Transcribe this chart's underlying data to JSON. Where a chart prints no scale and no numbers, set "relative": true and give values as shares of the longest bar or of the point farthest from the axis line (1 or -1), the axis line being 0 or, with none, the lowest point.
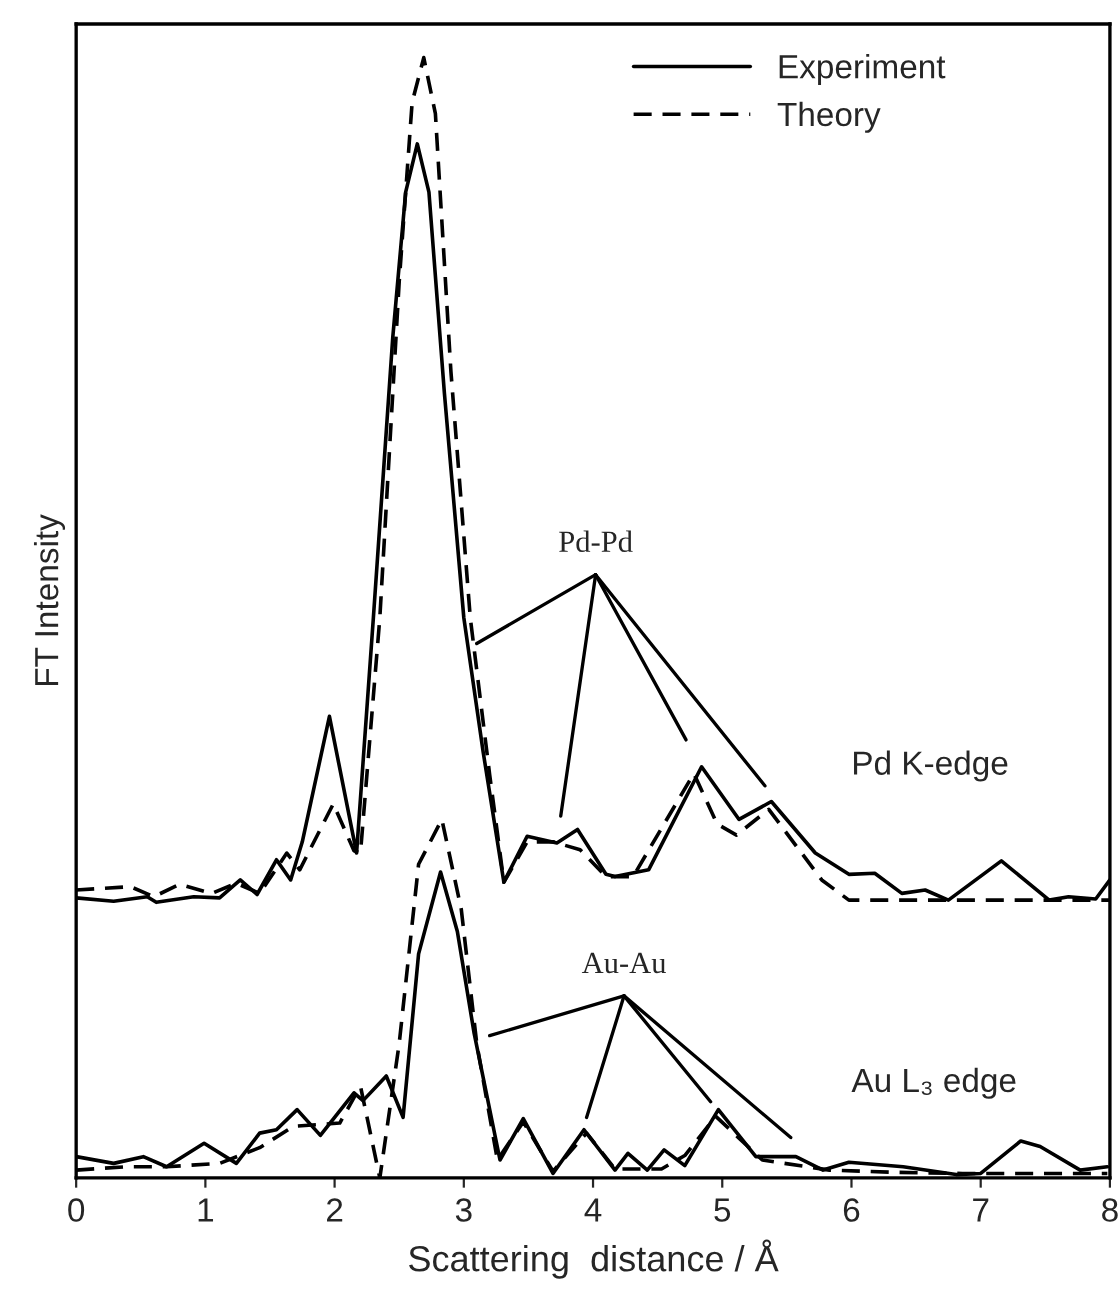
{
  "chart_data": {
    "type": "line",
    "relative": true,
    "xlabel": "Scattering  distance / Å",
    "ylabel": "FT Intensity",
    "xlim": [
      0,
      8
    ],
    "xticks": [
      0,
      1,
      2,
      3,
      4,
      5,
      6,
      7,
      8
    ],
    "grid": false,
    "legend": "top right",
    "marker": "none",
    "series": [
      {
        "name": "Experiment",
        "color": "#000000",
        "line_style": "solid",
        "x": [
          0,
          0.29,
          0.55,
          0.62,
          0.91,
          1.11,
          1.27,
          1.4,
          1.55,
          1.66,
          1.75,
          1.96,
          2.17,
          2.3,
          2.45,
          2.55,
          2.64,
          2.73,
          2.85,
          3.0,
          3.15,
          3.31,
          3.49,
          3.72,
          3.88,
          4.1,
          4.17,
          4.43,
          4.84,
          5.13,
          5.38,
          5.72,
          5.98,
          6.18,
          6.39,
          6.57,
          6.75,
          7.16,
          7.53,
          7.68,
          7.89,
          8.0
        ],
        "values": [
          0.25,
          0.247,
          0.251,
          0.246,
          0.251,
          0.25,
          0.266,
          0.253,
          0.284,
          0.266,
          0.3,
          0.412,
          0.29,
          0.5,
          0.75,
          0.88,
          0.923,
          0.88,
          0.7,
          0.5,
          0.38,
          0.264,
          0.305,
          0.299,
          0.311,
          0.271,
          0.269,
          0.275,
          0.367,
          0.32,
          0.336,
          0.29,
          0.271,
          0.272,
          0.254,
          0.257,
          0.248,
          0.283,
          0.248,
          0.251,
          0.249,
          0.266
        ]
      },
      {
        "name": "Theory",
        "color": "#000000",
        "line_style": "dashed",
        "x": [
          0,
          0.42,
          0.6,
          0.8,
          1.05,
          1.24,
          1.42,
          1.63,
          1.73,
          1.99,
          2.15,
          2.2,
          2.35,
          2.5,
          2.6,
          2.69,
          2.78,
          2.9,
          3.05,
          3.2,
          3.31,
          3.49,
          3.69,
          3.9,
          4.1,
          4.31,
          4.78,
          4.96,
          5.11,
          5.36,
          5.77,
          5.98,
          8.0
        ],
        "values": [
          0.257,
          0.26,
          0.251,
          0.262,
          0.254,
          0.263,
          0.254,
          0.29,
          0.275,
          0.334,
          0.292,
          0.29,
          0.5,
          0.8,
          0.96,
          1.0,
          0.95,
          0.72,
          0.5,
          0.36,
          0.264,
          0.3,
          0.3,
          0.293,
          0.269,
          0.269,
          0.361,
          0.316,
          0.306,
          0.329,
          0.266,
          0.248,
          0.248
        ]
      },
      {
        "color": "#000000",
        "line_style": "solid",
        "x": [
          0,
          0.29,
          0.52,
          0.7,
          0.99,
          1.24,
          1.42,
          1.55,
          1.71,
          1.89,
          2.15,
          2.22,
          2.4,
          2.53,
          2.65,
          2.82,
          2.95,
          3.08,
          3.28,
          3.46,
          3.69,
          3.93,
          4.17,
          4.27,
          4.42,
          4.55,
          4.71,
          4.97,
          5.26,
          5.57,
          5.78,
          5.98,
          6.4,
          6.81,
          7.0,
          7.31,
          7.46,
          7.77,
          7.98
        ],
        "values": [
          0.019,
          0.013,
          0.019,
          0.01,
          0.031,
          0.013,
          0.04,
          0.043,
          0.061,
          0.038,
          0.076,
          0.069,
          0.091,
          0.054,
          0.2,
          0.273,
          0.22,
          0.129,
          0.016,
          0.053,
          0.004,
          0.043,
          0.007,
          0.022,
          0.007,
          0.025,
          0.011,
          0.061,
          0.019,
          0.019,
          0.007,
          0.014,
          0.01,
          0.003,
          0.004,
          0.033,
          0.028,
          0.007,
          0.01
        ]
      },
      {
        "color": "#000000",
        "line_style": "dashed",
        "x": [
          0,
          0.39,
          0.7,
          1.11,
          1.42,
          1.68,
          2.04,
          2.2,
          2.35,
          2.5,
          2.65,
          2.83,
          2.98,
          3.1,
          3.26,
          3.46,
          3.69,
          3.95,
          4.17,
          4.53,
          4.71,
          4.95,
          5.31,
          5.83,
          6.34,
          6.86,
          7.98
        ],
        "values": [
          0.007,
          0.01,
          0.01,
          0.013,
          0.027,
          0.046,
          0.049,
          0.082,
          0.0,
          0.12,
          0.28,
          0.32,
          0.24,
          0.12,
          0.016,
          0.05,
          0.006,
          0.04,
          0.008,
          0.008,
          0.02,
          0.055,
          0.016,
          0.007,
          0.005,
          0.004,
          0.004
        ]
      }
    ],
    "annotations": [
      "Pd-Pd",
      "Pd K-edge",
      "Au-Au",
      "Au L₃ edge"
    ]
  }
}
